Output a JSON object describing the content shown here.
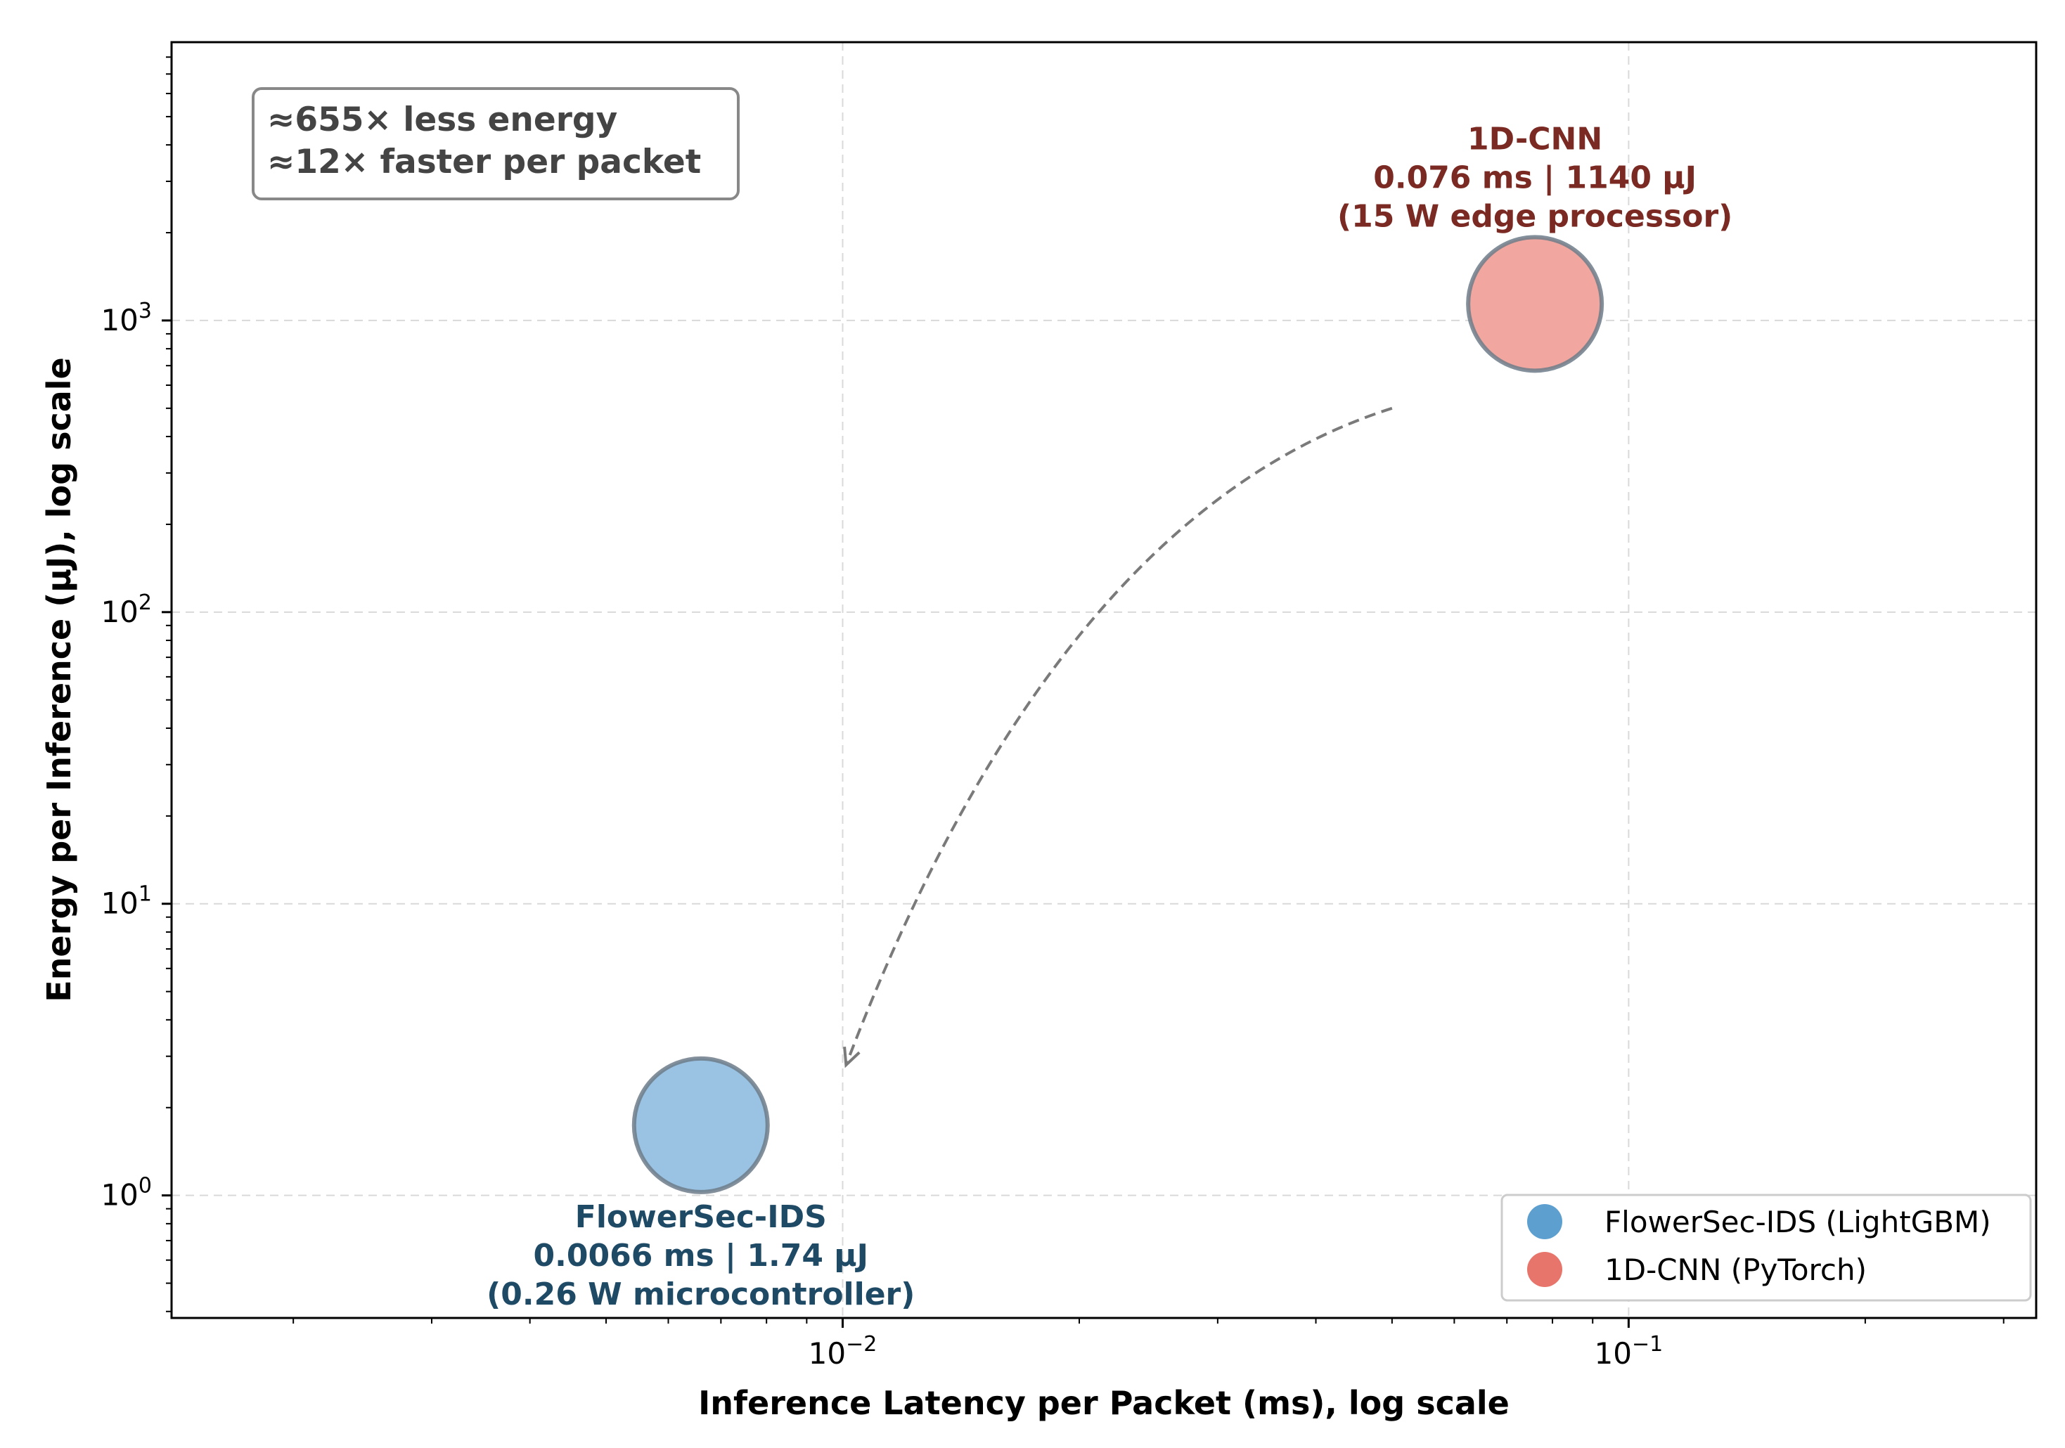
{
  "chart_data": {
    "type": "scatter",
    "title": "",
    "xlabel": "Inference Latency per Packet (ms), log scale",
    "ylabel": "Energy per Inference (μJ), log scale",
    "xscale": "log",
    "yscale": "log",
    "xlim": [
      0.0014,
      0.33
    ],
    "ylim": [
      0.38,
      9000
    ],
    "xticks": [
      {
        "value": 0.01,
        "base": "10",
        "exp": "−2"
      },
      {
        "value": 0.1,
        "base": "10",
        "exp": "−1"
      }
    ],
    "yticks": [
      {
        "value": 1,
        "base": "10",
        "exp": "0"
      },
      {
        "value": 10,
        "base": "10",
        "exp": "1"
      },
      {
        "value": 100,
        "base": "10",
        "exp": "2"
      },
      {
        "value": 1000,
        "base": "10",
        "exp": "3"
      }
    ],
    "grid": true,
    "legend_position": "lower-right",
    "series": [
      {
        "name": "FlowerSec-IDS (LightGBM)",
        "x": 0.0066,
        "y": 1.74,
        "color": "#5da0d0",
        "fill": "#9ac3e3",
        "annotation_color": "#1f4a66",
        "annotation": [
          "FlowerSec-IDS",
          "0.0066 ms  |  1.74 μJ",
          "(0.26 W microcontroller)"
        ]
      },
      {
        "name": "1D-CNN (PyTorch)",
        "x": 0.076,
        "y": 1140,
        "color": "#e8756b",
        "fill": "#f1a79f",
        "annotation_color": "#7a2a22",
        "annotation": [
          "1D-CNN",
          "0.076 ms  |  1140 μJ",
          "(15 W edge processor)"
        ]
      }
    ],
    "arrow": {
      "from": {
        "x": 0.05,
        "y": 500
      },
      "to": {
        "x": 0.0101,
        "y": 2.8
      }
    },
    "callout_box": [
      "≈655× less energy",
      "≈12× faster per packet"
    ]
  }
}
